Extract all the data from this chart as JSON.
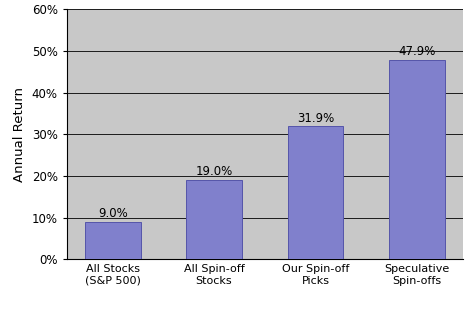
{
  "categories": [
    "All Stocks\n(S&P 500)",
    "All Spin-off\nStocks",
    "Our Spin-off\nPicks",
    "Speculative\nSpin-offs"
  ],
  "values": [
    9.0,
    19.0,
    31.9,
    47.9
  ],
  "bar_color": "#8080CC",
  "bar_edgecolor": "#5555AA",
  "ylabel": "Annual Return",
  "ylim": [
    0,
    0.6
  ],
  "yticks": [
    0.0,
    0.1,
    0.2,
    0.3,
    0.4,
    0.5,
    0.6
  ],
  "ytick_labels": [
    "0%",
    "10%",
    "20%",
    "30%",
    "40%",
    "50%",
    "60%"
  ],
  "figure_bg_color": "#FFFFFF",
  "plot_bg_color": "#C8C8C8",
  "label_fontsize": 8.5,
  "ylabel_fontsize": 9.5,
  "xlabel_fontsize": 8,
  "value_label_fontsize": 8.5,
  "grid_color": "#000000",
  "bar_width": 0.55,
  "spine_color": "#000000"
}
